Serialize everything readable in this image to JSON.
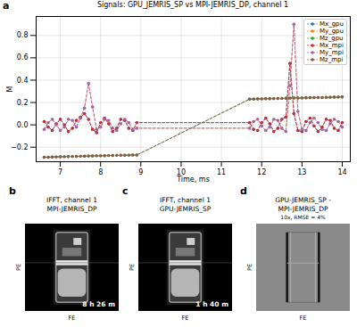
{
  "chart_data": {
    "panel": "a",
    "type": "line",
    "title": "Signals: GPU_JEMRIS_SP vs MPI-JEMRIS_DP, channel 1",
    "x_label": "Time, ms",
    "y_label": "M",
    "xlim": [
      6.4,
      14.2
    ],
    "xticks": [
      7,
      8,
      9,
      10,
      11,
      12,
      13,
      14
    ],
    "ylim": [
      -0.33,
      0.97
    ],
    "yticks": [
      {
        "value": -0.2,
        "label": "−0.2"
      },
      {
        "value": 0,
        "label": "0.0"
      },
      {
        "value": 0.2,
        "label": "0.2"
      },
      {
        "value": 0.4,
        "label": "0.4"
      },
      {
        "value": 0.6,
        "label": "0.6"
      },
      {
        "value": 0.8,
        "label": "0.8"
      }
    ],
    "grid": true,
    "legend": "upper right",
    "marker": "circle",
    "line_style": "dashed",
    "x": [
      6.6,
      6.7,
      6.8,
      6.9,
      7.0,
      7.1,
      7.2,
      7.3,
      7.4,
      7.5,
      7.6,
      7.7,
      7.8,
      7.9,
      8.0,
      8.1,
      8.2,
      8.3,
      8.4,
      8.5,
      8.6,
      8.7,
      8.8,
      8.9,
      11.7,
      11.8,
      11.9,
      12.0,
      12.1,
      12.2,
      12.3,
      12.4,
      12.5,
      12.6,
      12.7,
      12.8,
      12.9,
      13.0,
      13.1,
      13.2,
      13.3,
      13.4,
      13.5,
      13.6,
      13.7,
      13.8,
      13.9,
      14.0
    ],
    "series": [
      {
        "name": "Mx_gpu",
        "color": "#1f77b4",
        "values": [
          0.03,
          -0.02,
          -0.05,
          0.01,
          0.05,
          0.0,
          -0.06,
          -0.03,
          0.04,
          0.07,
          0.1,
          0.05,
          -0.04,
          -0.07,
          0.02,
          0.06,
          0.01,
          -0.06,
          -0.03,
          0.05,
          0.04,
          -0.03,
          -0.05,
          0.02,
          0.02,
          -0.04,
          -0.05,
          0.02,
          0.06,
          0.01,
          -0.06,
          -0.03,
          0.05,
          0.07,
          0.55,
          0.1,
          -0.05,
          -0.06,
          0.03,
          0.06,
          -0.01,
          -0.06,
          -0.02,
          0.05,
          0.04,
          -0.03,
          -0.05,
          0.02
        ]
      },
      {
        "name": "My_gpu",
        "color": "#ff7f0e",
        "values": [
          -0.04,
          0.02,
          0.05,
          0.0,
          -0.05,
          -0.02,
          0.05,
          0.04,
          -0.02,
          0.06,
          0.15,
          0.37,
          0.16,
          -0.04,
          -0.02,
          0.05,
          0.04,
          -0.03,
          -0.05,
          0.01,
          0.05,
          0.02,
          -0.04,
          -0.03,
          -0.03,
          0.03,
          0.05,
          -0.01,
          -0.05,
          -0.02,
          0.05,
          0.04,
          -0.03,
          -0.06,
          0.35,
          0.9,
          0.12,
          -0.04,
          -0.05,
          0.02,
          0.06,
          0.02,
          -0.04,
          -0.05,
          0.01,
          0.05,
          0.03,
          -0.02
        ]
      },
      {
        "name": "Mz_gpu",
        "color": "#2ca02c",
        "values": [
          -0.29,
          -0.29,
          -0.288,
          -0.287,
          -0.286,
          -0.285,
          -0.284,
          -0.283,
          -0.282,
          -0.281,
          -0.28,
          -0.279,
          -0.278,
          -0.277,
          -0.277,
          -0.276,
          -0.275,
          -0.274,
          -0.273,
          -0.272,
          -0.272,
          -0.271,
          -0.27,
          -0.27,
          0.23,
          0.231,
          0.232,
          0.233,
          0.234,
          0.234,
          0.235,
          0.236,
          0.237,
          0.238,
          0.239,
          0.24,
          0.24,
          0.241,
          0.242,
          0.243,
          0.244,
          0.245,
          0.245,
          0.246,
          0.247,
          0.248,
          0.249,
          0.25
        ]
      },
      {
        "name": "Mx_mpi",
        "color": "#d62728",
        "values": [
          0.03,
          -0.02,
          -0.05,
          0.01,
          0.05,
          0.0,
          -0.06,
          -0.03,
          0.04,
          0.07,
          0.1,
          0.05,
          -0.04,
          -0.07,
          0.02,
          0.06,
          0.01,
          -0.06,
          -0.03,
          0.05,
          0.04,
          -0.03,
          -0.05,
          0.02,
          0.02,
          -0.04,
          -0.05,
          0.02,
          0.06,
          0.01,
          -0.06,
          -0.03,
          0.05,
          0.07,
          0.55,
          0.1,
          -0.05,
          -0.06,
          0.03,
          0.06,
          -0.01,
          -0.06,
          -0.02,
          0.05,
          0.04,
          -0.03,
          -0.05,
          0.02
        ]
      },
      {
        "name": "My_mpi",
        "color": "#9467bd",
        "values": [
          -0.04,
          0.02,
          0.05,
          0.0,
          -0.05,
          -0.02,
          0.05,
          0.04,
          -0.02,
          0.06,
          0.15,
          0.37,
          0.16,
          -0.04,
          -0.02,
          0.05,
          0.04,
          -0.03,
          -0.05,
          0.01,
          0.05,
          0.02,
          -0.04,
          -0.03,
          -0.03,
          0.03,
          0.05,
          -0.01,
          -0.05,
          -0.02,
          0.05,
          0.04,
          -0.03,
          -0.06,
          0.35,
          0.9,
          0.12,
          -0.04,
          -0.05,
          0.02,
          0.06,
          0.02,
          -0.04,
          -0.05,
          0.01,
          0.05,
          0.03,
          -0.02
        ]
      },
      {
        "name": "Mz_mpi",
        "color": "#8c564b",
        "values": [
          -0.29,
          -0.29,
          -0.288,
          -0.287,
          -0.286,
          -0.285,
          -0.284,
          -0.283,
          -0.282,
          -0.281,
          -0.28,
          -0.279,
          -0.278,
          -0.277,
          -0.277,
          -0.276,
          -0.275,
          -0.274,
          -0.273,
          -0.272,
          -0.272,
          -0.271,
          -0.27,
          -0.27,
          0.23,
          0.231,
          0.232,
          0.233,
          0.234,
          0.234,
          0.235,
          0.236,
          0.237,
          0.238,
          0.239,
          0.24,
          0.24,
          0.241,
          0.242,
          0.243,
          0.244,
          0.245,
          0.245,
          0.246,
          0.247,
          0.248,
          0.249,
          0.25
        ]
      }
    ]
  },
  "images": [
    {
      "panel": "b",
      "title": [
        "IFFT, channel 1",
        "MPI-JEMRIS_DP"
      ],
      "annotation": "8 h 26 m",
      "x_label": "FE",
      "y_label": "PE"
    },
    {
      "panel": "c",
      "title": [
        "IFFT, channel 1",
        "GPU-JEMRIS_SP"
      ],
      "annotation": "1 h 40 m",
      "x_label": "FE",
      "y_label": "PE"
    },
    {
      "panel": "d",
      "title": [
        "GPU-JEMRIS_SP -",
        "MPI-JEMRIS_DP"
      ],
      "subtitle": "10x, RMSE = 4%",
      "x_label": "FE",
      "y_label": "PE"
    }
  ]
}
